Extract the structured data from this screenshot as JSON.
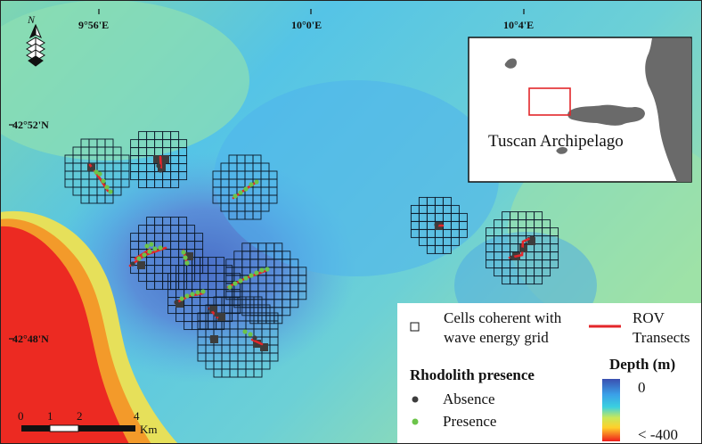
{
  "map": {
    "longitude_labels": [
      "9°56'E",
      "10°0'E",
      "10°4'E"
    ],
    "latitude_labels": [
      "42°52'N",
      "42°48'N"
    ],
    "north_arrow_label": "N"
  },
  "inset": {
    "caption": "Tuscan Archipelago"
  },
  "legend": {
    "cells_label_line1": "Cells coherent with",
    "cells_label_line2": "wave energy grid",
    "rov_label_line1": "ROV",
    "rov_label_line2": "Transects",
    "rhodolith_title": "Rhodolith presence",
    "absence_label": "Absence",
    "presence_label": "Presence",
    "depth_title": "Depth (m)",
    "depth_max_label": "0",
    "depth_min_label": "< -400",
    "colors": {
      "absence": "#3d3d3d",
      "presence": "#6cc44a",
      "rov": "#e3262a"
    }
  },
  "scalebar": {
    "ticks": [
      "0",
      "1",
      "2",
      "4"
    ],
    "unit": "Km"
  }
}
